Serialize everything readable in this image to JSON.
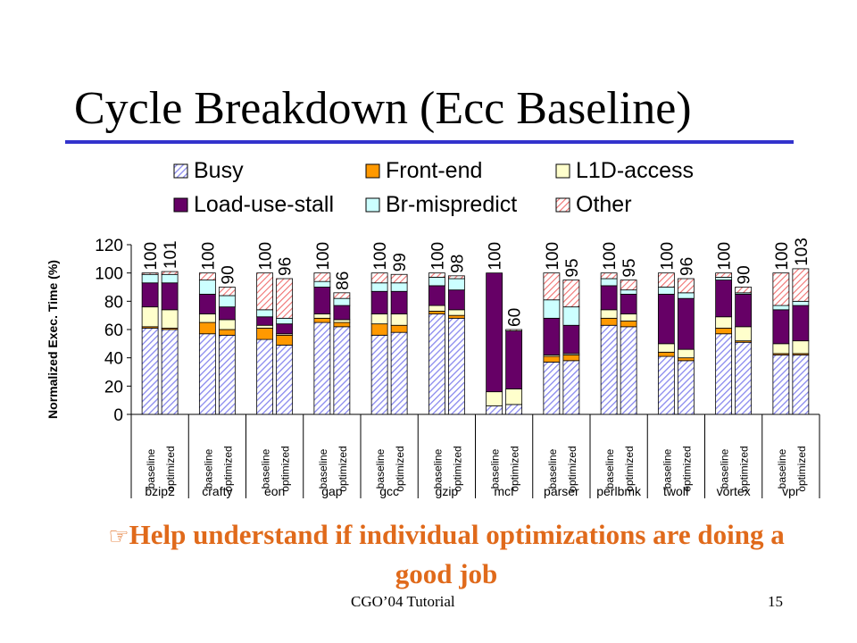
{
  "slide": {
    "title": "Cycle Breakdown (Ecc Baseline)",
    "bullet_icon": "pointing-hand-icon",
    "bullet_text": "Help understand if individual optimizations are doing a good job",
    "footer_left": "CGO’04 Tutorial",
    "footer_right": "15"
  },
  "chart_data": {
    "type": "bar",
    "stacked": true,
    "title": "",
    "ylabel": "Normalized Exec. Time (%)",
    "ylim": [
      0,
      120
    ],
    "yticks": [
      0,
      20,
      40,
      60,
      80,
      100,
      120
    ],
    "grid": false,
    "legend_position": "top",
    "groups": [
      "bzip2",
      "crafty",
      "eon",
      "gap",
      "gcc",
      "gzip",
      "mcf",
      "parser",
      "perlbmk",
      "twolf",
      "vortex",
      "vpr"
    ],
    "bar_labels": [
      "baseline",
      "optimized"
    ],
    "totals": [
      [
        100,
        101
      ],
      [
        100,
        90
      ],
      [
        100,
        96
      ],
      [
        100,
        86
      ],
      [
        100,
        99
      ],
      [
        100,
        98
      ],
      [
        100,
        60
      ],
      [
        100,
        95
      ],
      [
        100,
        95
      ],
      [
        100,
        96
      ],
      [
        100,
        90
      ],
      [
        100,
        103
      ]
    ],
    "series": [
      {
        "name": "Busy",
        "color": "#9999ff",
        "pattern": "hatch-blue",
        "values": [
          [
            61,
            60
          ],
          [
            57,
            56
          ],
          [
            53,
            49
          ],
          [
            65,
            62
          ],
          [
            56,
            58
          ],
          [
            71,
            68
          ],
          [
            6,
            7
          ],
          [
            37,
            38
          ],
          [
            63,
            62
          ],
          [
            41,
            38
          ],
          [
            57,
            51
          ],
          [
            42,
            42
          ]
        ]
      },
      {
        "name": "Front-end",
        "color": "#ff9900",
        "pattern": "solid",
        "values": [
          [
            1,
            1
          ],
          [
            8,
            4
          ],
          [
            8,
            7
          ],
          [
            3,
            3
          ],
          [
            8,
            5
          ],
          [
            2,
            2
          ],
          [
            0,
            0
          ],
          [
            4,
            4
          ],
          [
            5,
            4
          ],
          [
            3,
            2
          ],
          [
            4,
            1
          ],
          [
            1,
            1
          ]
        ]
      },
      {
        "name": "L1D-access",
        "color": "#ffffcc",
        "pattern": "solid",
        "values": [
          [
            14,
            13
          ],
          [
            6,
            7
          ],
          [
            2,
            1
          ],
          [
            3,
            2
          ],
          [
            7,
            8
          ],
          [
            4,
            4
          ],
          [
            10,
            11
          ],
          [
            1,
            1
          ],
          [
            6,
            5
          ],
          [
            6,
            6
          ],
          [
            8,
            10
          ],
          [
            7,
            9
          ]
        ]
      },
      {
        "name": "Load-use-stall",
        "color": "#660066",
        "pattern": "solid",
        "values": [
          [
            17,
            19
          ],
          [
            14,
            9
          ],
          [
            6,
            7
          ],
          [
            19,
            10
          ],
          [
            16,
            16
          ],
          [
            14,
            14
          ],
          [
            84,
            41
          ],
          [
            26,
            20
          ],
          [
            17,
            14
          ],
          [
            35,
            36
          ],
          [
            26,
            23
          ],
          [
            24,
            25
          ]
        ]
      },
      {
        "name": "Br-mispredict",
        "color": "#ccffff",
        "pattern": "solid",
        "values": [
          [
            6,
            6
          ],
          [
            10,
            8
          ],
          [
            5,
            4
          ],
          [
            4,
            5
          ],
          [
            6,
            6
          ],
          [
            6,
            8
          ],
          [
            0,
            0
          ],
          [
            13,
            13
          ],
          [
            5,
            3
          ],
          [
            5,
            4
          ],
          [
            2,
            1
          ],
          [
            3,
            3
          ]
        ]
      },
      {
        "name": "Other",
        "color": "#ff9999",
        "pattern": "hatch-red",
        "values": [
          [
            1,
            2
          ],
          [
            5,
            6
          ],
          [
            26,
            28
          ],
          [
            6,
            4
          ],
          [
            7,
            6
          ],
          [
            3,
            2
          ],
          [
            0,
            1
          ],
          [
            19,
            19
          ],
          [
            4,
            7
          ],
          [
            10,
            10
          ],
          [
            3,
            4
          ],
          [
            23,
            23
          ]
        ]
      }
    ]
  }
}
